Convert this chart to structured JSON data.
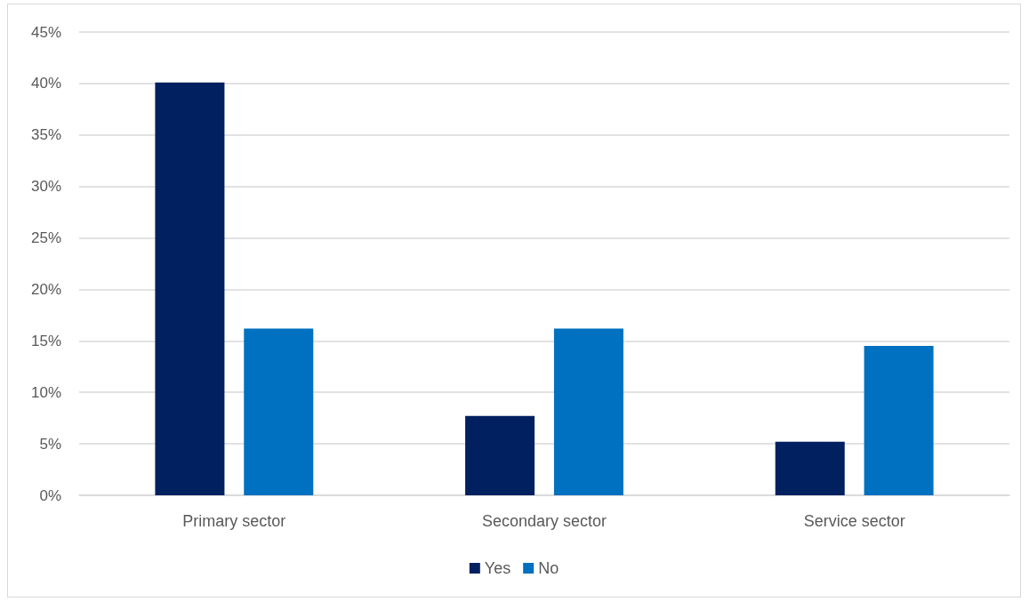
{
  "chart_data": {
    "type": "bar",
    "categories": [
      "Primary sector",
      "Secondary sector",
      "Service sector"
    ],
    "series": [
      {
        "name": "Yes",
        "color": "#002060",
        "values": [
          40.1,
          7.7,
          5.2
        ]
      },
      {
        "name": "No",
        "color": "#0070c0",
        "values": [
          16.2,
          16.2,
          14.5
        ]
      }
    ],
    "ylim": [
      0,
      45
    ],
    "yticks": [
      {
        "value": 0,
        "label": "0%"
      },
      {
        "value": 5,
        "label": "5%"
      },
      {
        "value": 10,
        "label": "10%"
      },
      {
        "value": 15,
        "label": "15%"
      },
      {
        "value": 20,
        "label": "20%"
      },
      {
        "value": 25,
        "label": "25%"
      },
      {
        "value": 30,
        "label": "30%"
      },
      {
        "value": 35,
        "label": "35%"
      },
      {
        "value": 40,
        "label": "40%"
      },
      {
        "value": 45,
        "label": "45%"
      }
    ],
    "grid": "y",
    "legend": "bottom"
  }
}
